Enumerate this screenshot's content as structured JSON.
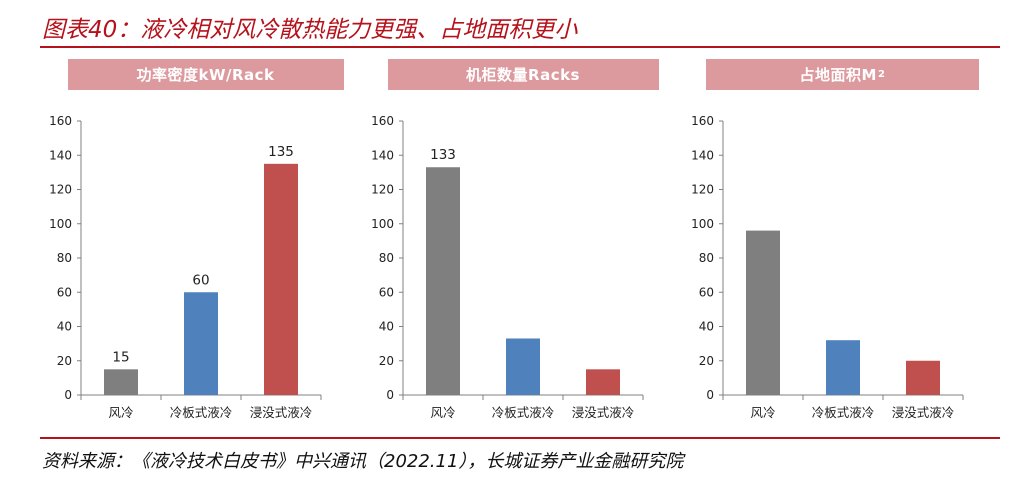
{
  "title": "图表40：液冷相对风冷散热能力更强、占地面积更小",
  "source": "资料来源：《液冷技术白皮书》中兴通讯（2022.11），长城证券产业金融研究院",
  "colors": {
    "title_red": "#b5121b",
    "header_pink": "#dd9a9e",
    "air_gray": "#7f7f7f",
    "plate_blue": "#4f81bd",
    "immersion_red": "#c0504d"
  },
  "chart_data": [
    {
      "type": "bar",
      "title": "功率密度kW/Rack",
      "title_sup": "",
      "categories": [
        "风冷",
        "冷板式液冷",
        "浸没式液冷"
      ],
      "values": [
        15,
        60,
        135
      ],
      "data_labels": [
        "15",
        "60",
        "135"
      ],
      "ylim": [
        0,
        160
      ],
      "yticks": [
        "0",
        "20",
        "40",
        "60",
        "80",
        "100",
        "120",
        "140",
        "160"
      ],
      "grid": false
    },
    {
      "type": "bar",
      "title": "机柜数量Racks",
      "title_sup": "",
      "categories": [
        "风冷",
        "冷板式液冷",
        "浸没式液冷"
      ],
      "values": [
        133,
        33,
        15
      ],
      "data_labels": [
        "133",
        "",
        ""
      ],
      "ylim": [
        0,
        160
      ],
      "yticks": [
        "0",
        "20",
        "40",
        "60",
        "80",
        "100",
        "120",
        "140",
        "160"
      ],
      "grid": false
    },
    {
      "type": "bar",
      "title": "占地面积M",
      "title_sup": "2",
      "categories": [
        "风冷",
        "冷板式液冷",
        "浸没式液冷"
      ],
      "values": [
        96,
        32,
        20
      ],
      "data_labels": [
        "",
        "",
        ""
      ],
      "ylim": [
        0,
        160
      ],
      "yticks": [
        "0",
        "20",
        "40",
        "60",
        "80",
        "100",
        "120",
        "140",
        "160"
      ],
      "grid": false
    }
  ]
}
